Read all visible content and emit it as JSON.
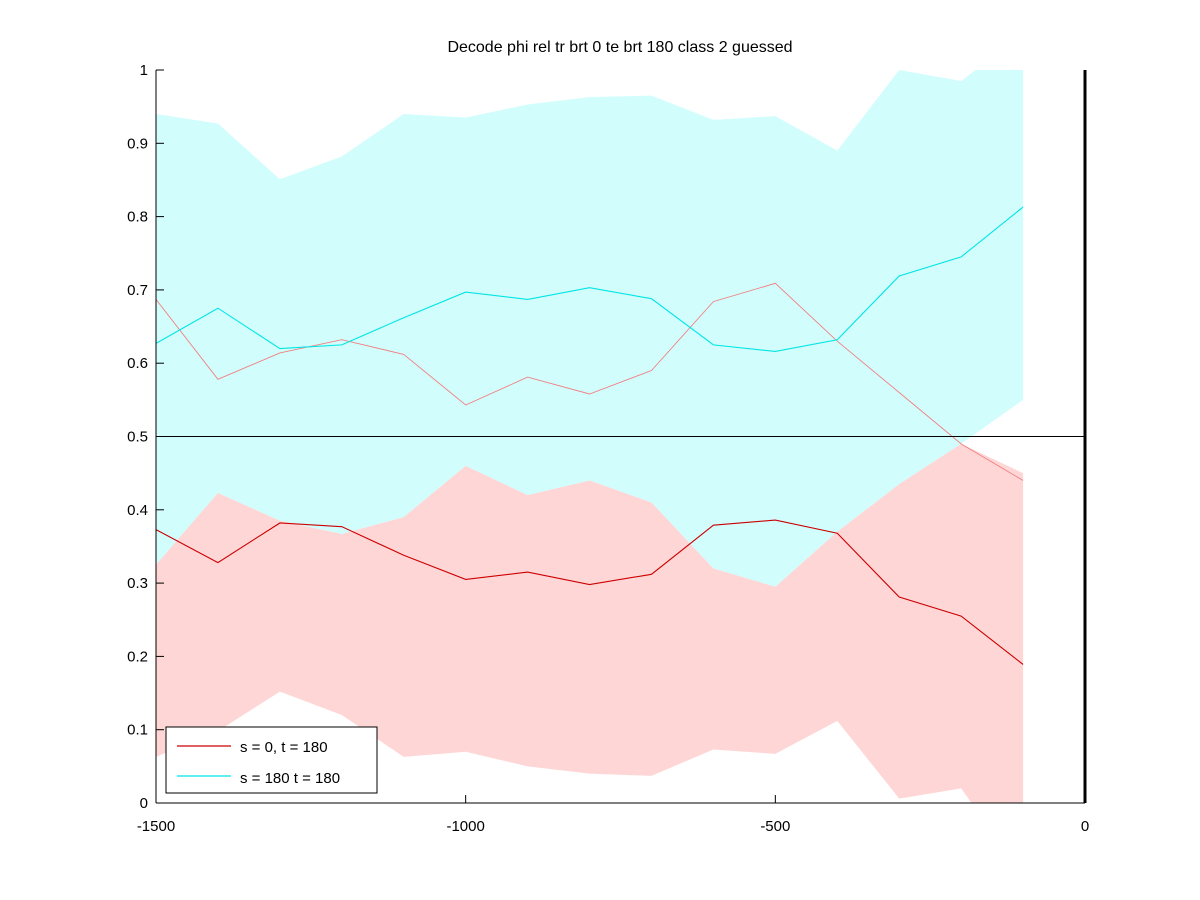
{
  "chart_data": {
    "type": "line",
    "title": "Decode phi rel tr brt 0 te brt 180  class 2 guessed",
    "xlabel": "",
    "ylabel": "",
    "xlim": [
      -1500,
      0
    ],
    "ylim": [
      0,
      1
    ],
    "x_ticks": [
      -1500,
      -1000,
      -500,
      0
    ],
    "y_ticks": [
      0,
      0.1,
      0.2,
      0.3,
      0.4,
      0.5,
      0.6,
      0.7,
      0.8,
      0.9,
      1
    ],
    "x_tick_labels": [
      "-1500",
      "-1000",
      "-500",
      "0"
    ],
    "y_tick_labels": [
      "0",
      "0.1",
      "0.2",
      "0.3",
      "0.4",
      "0.5",
      "0.6",
      "0.7",
      "0.8",
      "0.9",
      "1"
    ],
    "reference_line_y": 0.5,
    "reference_line_x": 0,
    "legend_placement": "bottom-left",
    "x": [
      -1500,
      -1400,
      -1300,
      -1200,
      -1100,
      -1000,
      -900,
      -800,
      -700,
      -600,
      -500,
      -400,
      -300,
      -200,
      -100
    ],
    "series": [
      {
        "name": "s = 0, t = 180",
        "color": "#cc0000",
        "band_color": "#ffd6d6",
        "mirror_color": "#f08080",
        "values": [
          0.373,
          0.328,
          0.382,
          0.377,
          0.338,
          0.305,
          0.315,
          0.298,
          0.312,
          0.379,
          0.386,
          0.368,
          0.281,
          0.255,
          0.189
        ],
        "upper": [
          0.325,
          0.423,
          0.385,
          0.367,
          0.39,
          0.46,
          0.42,
          0.44,
          0.41,
          0.32,
          0.295,
          0.37,
          0.435,
          0.49,
          0.45
        ],
        "lower": [
          0.063,
          0.098,
          0.152,
          0.12,
          0.063,
          0.07,
          0.05,
          0.04,
          0.037,
          0.073,
          0.067,
          0.112,
          0.006,
          0.02,
          -0.1
        ],
        "mirror_values": [
          0.687,
          0.578,
          0.614,
          0.632,
          0.612,
          0.543,
          0.581,
          0.558,
          0.59,
          0.684,
          0.709,
          0.63,
          0.56,
          0.49,
          0.44
        ]
      },
      {
        "name": "s = 180 t = 180",
        "color": "#00e5e5",
        "band_color": "#d2fdfd",
        "values": [
          0.627,
          0.675,
          0.62,
          0.625,
          0.662,
          0.697,
          0.687,
          0.703,
          0.688,
          0.625,
          0.616,
          0.632,
          0.719,
          0.745,
          0.813
        ],
        "upper": [
          0.94,
          0.927,
          0.851,
          0.882,
          0.94,
          0.935,
          0.953,
          0.963,
          0.965,
          0.932,
          0.937,
          0.89,
          1.0,
          0.985,
          1.05
        ],
        "lower": [
          0.315,
          0.423,
          0.385,
          0.367,
          0.39,
          0.46,
          0.42,
          0.44,
          0.41,
          0.32,
          0.295,
          0.37,
          0.435,
          0.49,
          0.55
        ]
      }
    ]
  }
}
